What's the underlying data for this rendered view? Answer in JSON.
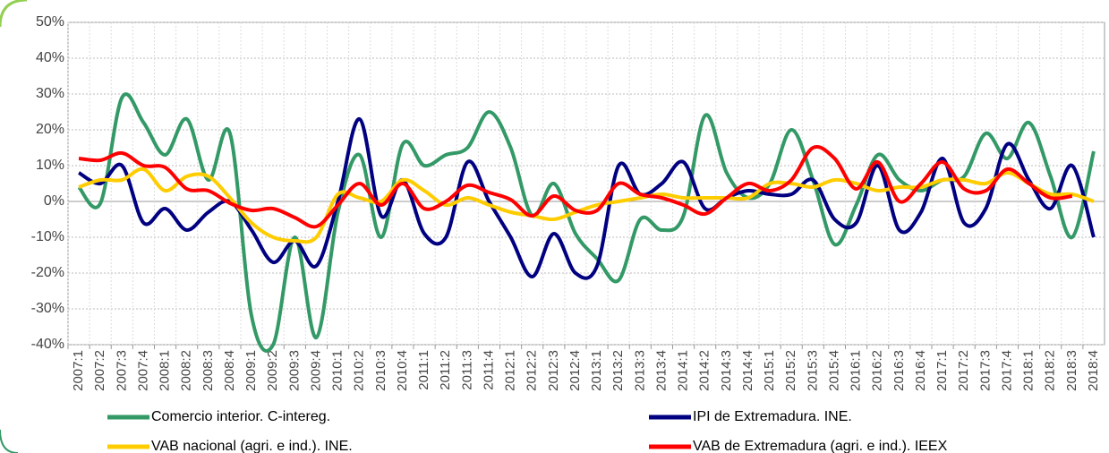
{
  "chart_data": {
    "type": "line",
    "categories": [
      "2007:1",
      "2007:2",
      "2007:3",
      "2007:4",
      "2008:1",
      "2008:2",
      "2008:3",
      "2008:4",
      "2009:1",
      "2009:2",
      "2009:3",
      "2009:4",
      "2010:1",
      "2010:2",
      "2010:3",
      "2010:4",
      "2011:1",
      "2011:2",
      "2011:3",
      "2011:4",
      "2012:1",
      "2012:2",
      "2012:3",
      "2012:4",
      "2013:1",
      "2013:2",
      "2013:3",
      "2013:4",
      "2014:1",
      "2014:2",
      "2014:3",
      "2014:4",
      "2015:1",
      "2015:2",
      "2015:3",
      "2015:4",
      "2016:1",
      "2016:2",
      "2016:3",
      "2016:4",
      "2017:1",
      "2017:2",
      "2017:3",
      "2017:4",
      "2018:1",
      "2018:2",
      "2018:3",
      "2018:4"
    ],
    "series": [
      {
        "name": "Comercio interior. C-intereg.",
        "color": "#339966",
        "values": [
          4,
          -0.5,
          29,
          22,
          13,
          23,
          6,
          19,
          -32,
          -40,
          -10,
          -38,
          -3,
          13,
          -10,
          16,
          10,
          13,
          15,
          25,
          15,
          -4,
          5,
          -9,
          -16,
          -22,
          -5,
          -8,
          -4,
          24,
          8,
          1,
          5,
          20,
          6,
          -12,
          -1,
          13,
          6,
          3,
          6,
          7,
          19,
          12,
          22,
          7,
          -10,
          14
        ]
      },
      {
        "name": "IPI de Extremadura. INE.",
        "color": "#000080",
        "values": [
          8,
          5,
          10,
          -6,
          -2,
          -8,
          -3,
          0,
          -8,
          -17,
          -11,
          -18,
          0,
          23,
          -4,
          6,
          -9,
          -10,
          11,
          0,
          -10,
          -21,
          -9,
          -20,
          -18,
          10,
          2,
          5,
          11,
          -2,
          1,
          3,
          2,
          2,
          6,
          -5,
          -6,
          10,
          -8,
          -3,
          12,
          -6,
          -2,
          16,
          6,
          -2,
          10,
          -10
        ]
      },
      {
        "name": "VAB nacional (agri. e ind.). INE.",
        "color": "#ffcc00",
        "values": [
          4,
          6,
          6,
          9,
          3,
          7,
          7,
          1,
          -6,
          -10,
          -11,
          -10,
          2,
          1,
          0,
          6,
          3,
          -1,
          1,
          -1,
          -3,
          -4,
          -5,
          -3,
          -1,
          0,
          1,
          2,
          1,
          1,
          1,
          1,
          5,
          5,
          4,
          6,
          5,
          3,
          4,
          4,
          6,
          6,
          5,
          8,
          5,
          2,
          2,
          0
        ]
      },
      {
        "name": "VAB de Extremadura (agri. e ind.). IEEX",
        "color": "#ff0000",
        "values": [
          12,
          11.5,
          13.5,
          10,
          9.5,
          3.5,
          3,
          -0.5,
          -2.5,
          -2,
          -4.5,
          -7,
          -1,
          5,
          -1,
          5,
          -2,
          0,
          4.5,
          2.5,
          0.5,
          -4,
          1.5,
          -2.5,
          -2.5,
          5,
          2,
          1,
          -1,
          -3.5,
          1,
          5,
          3,
          6,
          15,
          12,
          3.5,
          11,
          0,
          5,
          11,
          3.5,
          3,
          9,
          5,
          1,
          1.5,
          null
        ]
      }
    ],
    "ylim": [
      -40,
      50
    ],
    "yticks": [
      {
        "value": -40,
        "label": "-40%"
      },
      {
        "value": -30,
        "label": "-30%"
      },
      {
        "value": -20,
        "label": "-20%"
      },
      {
        "value": -10,
        "label": "-10%"
      },
      {
        "value": 0,
        "label": "0%"
      },
      {
        "value": 10,
        "label": "10%"
      },
      {
        "value": 20,
        "label": "20%"
      },
      {
        "value": 30,
        "label": "30%"
      },
      {
        "value": 40,
        "label": "40%"
      },
      {
        "value": 50,
        "label": "50%"
      }
    ],
    "grid": true
  }
}
